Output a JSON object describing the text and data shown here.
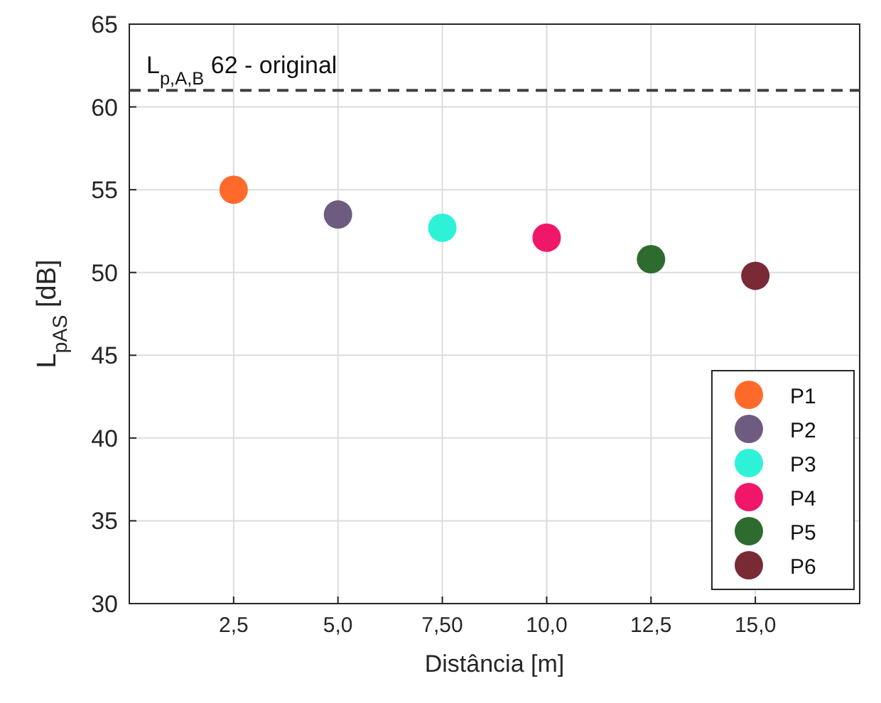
{
  "chart_data": {
    "type": "scatter",
    "xlabel": "Distância [m]",
    "ylabel": "L$_{pAS}$ [dB]",
    "xlim": [
      0,
      17.5
    ],
    "xticks": [
      {
        "value": 2.5,
        "label": "2,5"
      },
      {
        "value": 5,
        "label": "5,0"
      },
      {
        "value": 7.5,
        "label": "7,50"
      },
      {
        "value": 10,
        "label": "10,0"
      },
      {
        "value": 12.5,
        "label": "12,5"
      },
      {
        "value": 15,
        "label": "15,0"
      }
    ],
    "ylim": [
      30,
      65
    ],
    "yticks": [
      30,
      35,
      40,
      45,
      50,
      55,
      60,
      65
    ],
    "grid": true,
    "legend": "bottom right",
    "marker": "circle",
    "ref_lines": [
      {
        "axis": "y",
        "value": 61,
        "label": "L$_{p,A,B}$ 62 - original",
        "color": "#404040",
        "line_style": "dashed"
      }
    ],
    "series": [
      {
        "name": "P1",
        "color": "#ff6a2b",
        "x": [
          2.5
        ],
        "values": [
          55
        ]
      },
      {
        "name": "P2",
        "color": "#6e5c80",
        "x": [
          5
        ],
        "values": [
          53.5
        ]
      },
      {
        "name": "P3",
        "color": "#2ef2d8",
        "x": [
          7.5
        ],
        "values": [
          52.7
        ]
      },
      {
        "name": "P4",
        "color": "#f0176a",
        "x": [
          10
        ],
        "values": [
          52.1
        ]
      },
      {
        "name": "P5",
        "color": "#2e6b2e",
        "x": [
          12.5
        ],
        "values": [
          50.8
        ]
      },
      {
        "name": "P6",
        "color": "#7a2a35",
        "x": [
          15
        ],
        "values": [
          49.8
        ]
      }
    ]
  }
}
